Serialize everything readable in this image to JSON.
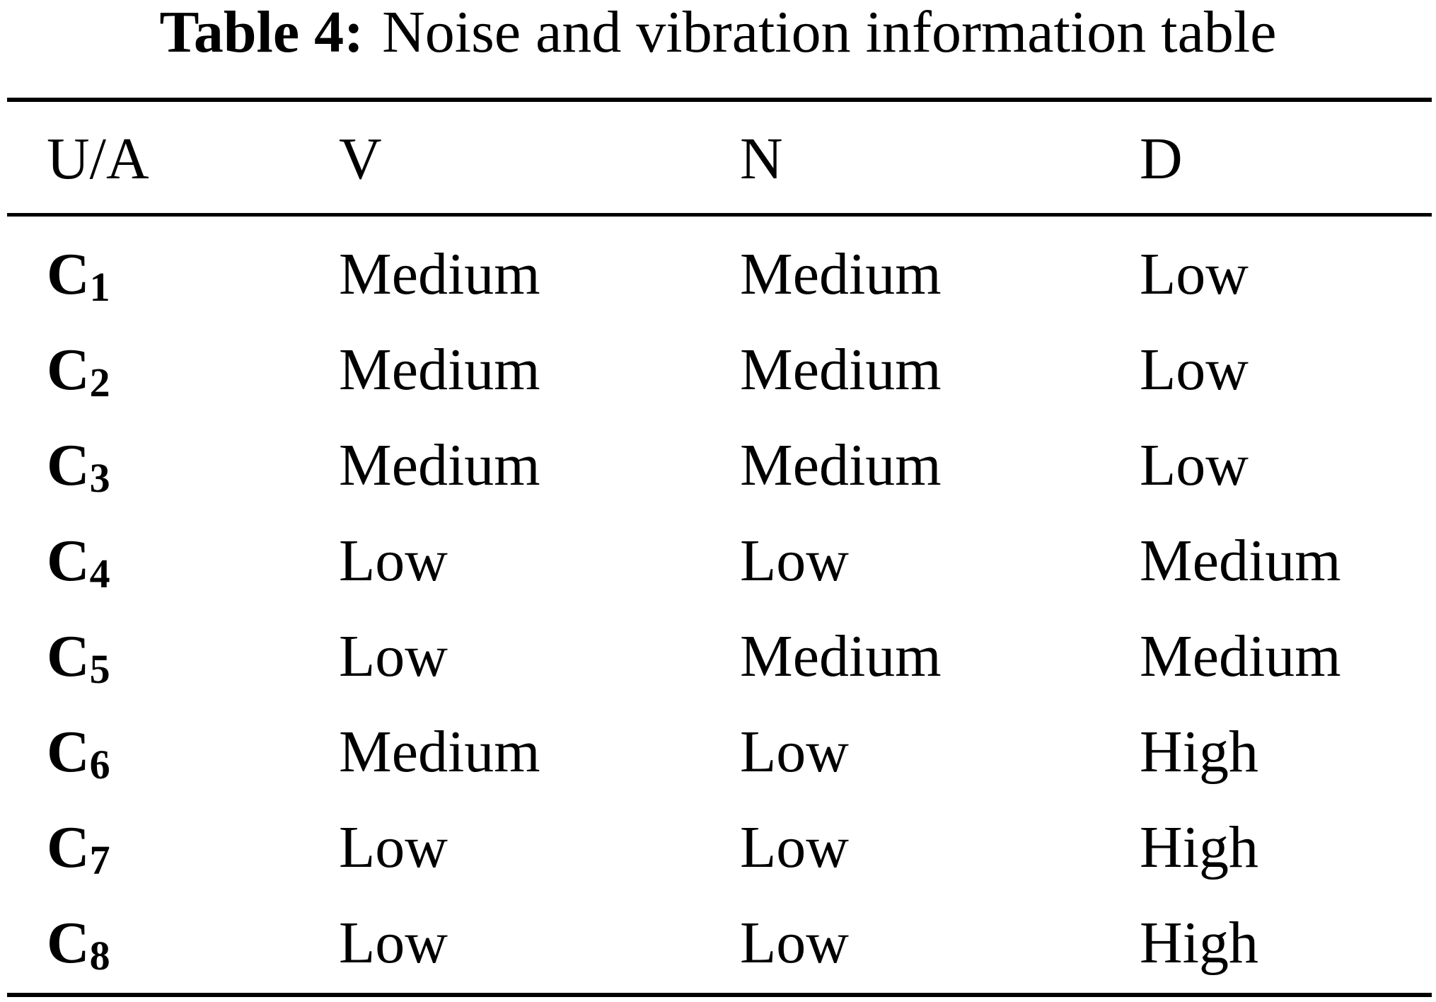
{
  "caption": {
    "label": "Table 4:",
    "text": "Noise and vibration information table"
  },
  "table": {
    "headers": [
      "U/A",
      "V",
      "N",
      "D"
    ],
    "rows": [
      {
        "letter": "C",
        "sub": "1",
        "v": "Medium",
        "n": "Medium",
        "d": "Low"
      },
      {
        "letter": "C",
        "sub": "2",
        "v": "Medium",
        "n": "Medium",
        "d": "Low"
      },
      {
        "letter": "C",
        "sub": "3",
        "v": "Medium",
        "n": "Medium",
        "d": "Low"
      },
      {
        "letter": "C",
        "sub": "4",
        "v": "Low",
        "n": "Low",
        "d": "Medium"
      },
      {
        "letter": "C",
        "sub": "5",
        "v": "Low",
        "n": "Medium",
        "d": "Medium"
      },
      {
        "letter": "C",
        "sub": "6",
        "v": "Medium",
        "n": "Low",
        "d": "High"
      },
      {
        "letter": "C",
        "sub": "7",
        "v": "Low",
        "n": "Low",
        "d": "High"
      },
      {
        "letter": "C",
        "sub": "8",
        "v": "Low",
        "n": "Low",
        "d": "High"
      }
    ]
  }
}
